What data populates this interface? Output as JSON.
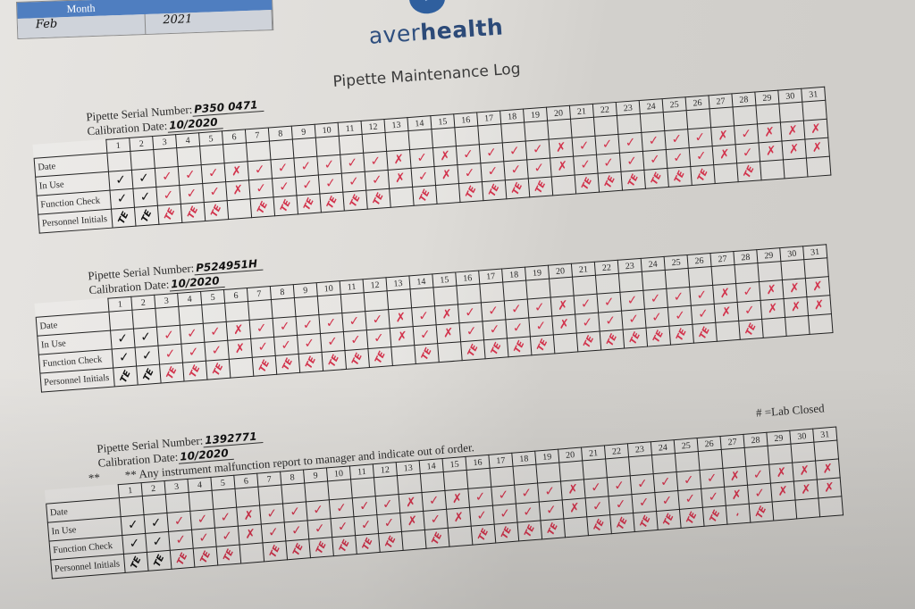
{
  "header": {
    "month_label": "Month",
    "month_value": "Feb",
    "year_value": "2021",
    "logo_text_light": "aver",
    "logo_text_bold": "health",
    "title": "Pipette Maintenance Log"
  },
  "labels": {
    "serial": "Pipette Serial Number:",
    "calibration": "Calibration Date:",
    "rows": [
      "Date",
      "In Use",
      "Function Check",
      "Personnel Initials"
    ],
    "note_prefix": "**",
    "note": "** Any instrument malfunction report to manager and indicate out of order.",
    "lab_closed": "# =Lab Closed"
  },
  "days": [
    "1",
    "2",
    "3",
    "4",
    "5",
    "6",
    "7",
    "8",
    "9",
    "10",
    "11",
    "12",
    "13",
    "14",
    "15",
    "16",
    "17",
    "18",
    "19",
    "20",
    "21",
    "22",
    "23",
    "24",
    "25",
    "26",
    "27",
    "28",
    "29",
    "30",
    "31"
  ],
  "colors": {
    "ink_red": "#d2334c",
    "ink_black": "#111111",
    "header_blue": "#4f7ec0"
  },
  "logs": [
    {
      "serial_number": "P350 0471",
      "calibration_date": "10/2020",
      "in_use": [
        "v",
        "v",
        "v",
        "v",
        "v",
        "x",
        "v",
        "v",
        "v",
        "v",
        "v",
        "v",
        "x",
        "v",
        "x",
        "v",
        "v",
        "v",
        "v",
        "x",
        "v",
        "v",
        "v",
        "v",
        "v",
        "v",
        "x",
        "v",
        "x",
        "x",
        "x"
      ],
      "function_check": [
        "v",
        "v",
        "v",
        "v",
        "v",
        "x",
        "v",
        "v",
        "v",
        "v",
        "v",
        "v",
        "x",
        "v",
        "x",
        "v",
        "v",
        "v",
        "v",
        "x",
        "v",
        "v",
        "v",
        "v",
        "v",
        "v",
        "x",
        "v",
        "x",
        "x",
        "x"
      ],
      "initials": [
        "TE",
        "TE",
        "TE",
        "TE",
        "TE",
        "",
        "TE",
        "TE",
        "TE",
        "TE",
        "TE",
        "TE",
        "",
        "TE",
        "",
        "TE",
        "TE",
        "TE",
        "TE",
        "",
        "TE",
        "TE",
        "TE",
        "TE",
        "TE",
        "TE",
        "",
        "TE",
        "",
        "",
        ""
      ]
    },
    {
      "serial_number": "P524951H",
      "calibration_date": "10/2020",
      "in_use": [
        "v",
        "v",
        "v",
        "v",
        "v",
        "x",
        "v",
        "v",
        "v",
        "v",
        "v",
        "v",
        "x",
        "v",
        "x",
        "v",
        "v",
        "v",
        "v",
        "x",
        "v",
        "v",
        "v",
        "v",
        "v",
        "v",
        "x",
        "v",
        "x",
        "x",
        "x"
      ],
      "function_check": [
        "v",
        "v",
        "v",
        "v",
        "v",
        "x",
        "v",
        "v",
        "v",
        "v",
        "v",
        "v",
        "x",
        "v",
        "x",
        "v",
        "v",
        "v",
        "v",
        "x",
        "v",
        "v",
        "v",
        "v",
        "v",
        "v",
        "x",
        "v",
        "x",
        "x",
        "x"
      ],
      "initials": [
        "TE",
        "TE",
        "TE",
        "TE",
        "TE",
        "",
        "TE",
        "TE",
        "TE",
        "TE",
        "TE",
        "TE",
        "",
        "TE",
        "",
        "TE",
        "TE",
        "TE",
        "TE",
        "",
        "TE",
        "TE",
        "TE",
        "TE",
        "TE",
        "TE",
        "",
        "TE",
        "",
        "",
        ""
      ]
    },
    {
      "serial_number": "1392771",
      "calibration_date": "10/2020",
      "in_use": [
        "v",
        "v",
        "v",
        "v",
        "v",
        "x",
        "v",
        "v",
        "v",
        "v",
        "v",
        "v",
        "x",
        "v",
        "x",
        "v",
        "v",
        "v",
        "v",
        "x",
        "v",
        "v",
        "v",
        "v",
        "v",
        "v",
        "x",
        "v",
        "x",
        "x",
        "x"
      ],
      "function_check": [
        "v",
        "v",
        "v",
        "v",
        "v",
        "x",
        "v",
        "v",
        "v",
        "v",
        "v",
        "v",
        "x",
        "v",
        "x",
        "v",
        "v",
        "v",
        "v",
        "x",
        "v",
        "v",
        "v",
        "v",
        "v",
        "v",
        "x",
        "v",
        "x",
        "x",
        "x"
      ],
      "initials": [
        "TE",
        "TE",
        "TE",
        "TE",
        "TE",
        "",
        "TE",
        "TE",
        "TE",
        "TE",
        "TE",
        "TE",
        "",
        "TE",
        "",
        "TE",
        "TE",
        "TE",
        "TE",
        "",
        "TE",
        "TE",
        "TE",
        "TE",
        "TE",
        "TE",
        "-",
        "TE",
        "",
        "",
        ""
      ]
    }
  ]
}
